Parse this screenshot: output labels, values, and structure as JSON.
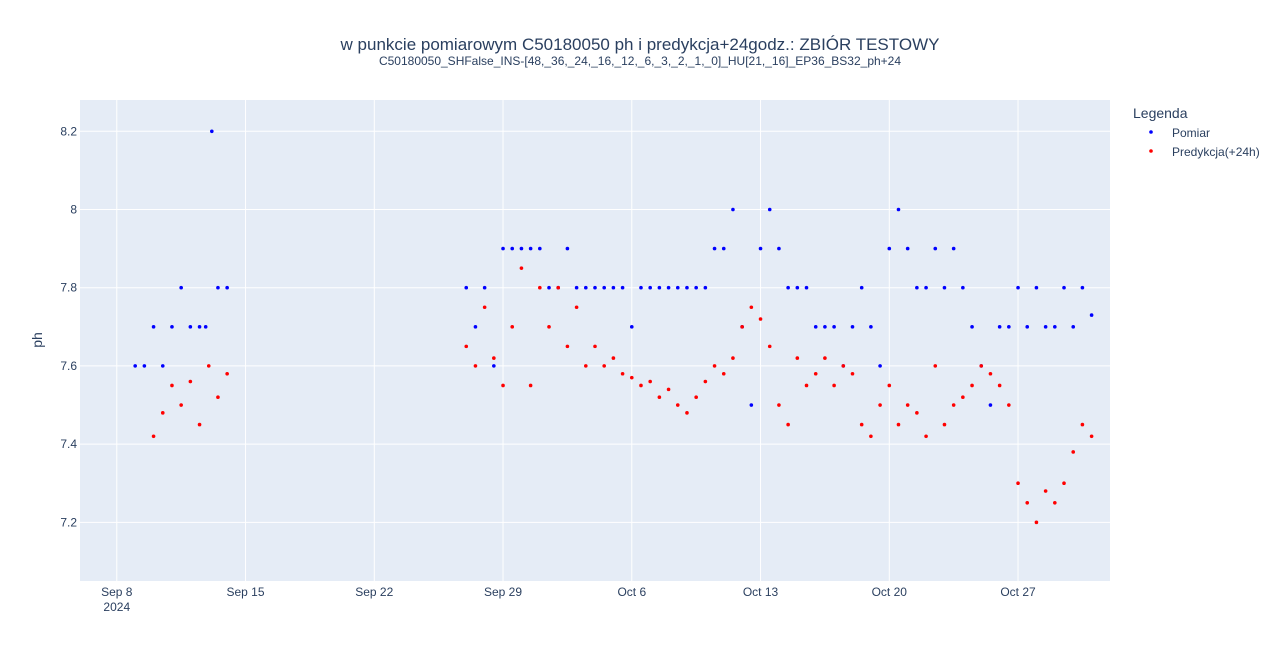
{
  "chart_data": {
    "type": "scatter",
    "title": "w punkcie pomiarowym C50180050 ph i predykcja+24godz.: ZBIÓR TESTOWY",
    "subtitle": "C50180050_SHFalse_INS-[48,_36,_24,_16,_12,_6,_3,_2,_1,_0]_HU[21,_16]_EP36_BS32_ph+24",
    "xlabel": "",
    "ylabel": "ph",
    "x_is_date": true,
    "x_range": [
      "2024-09-06",
      "2024-11-01"
    ],
    "ylim": [
      7.05,
      8.28
    ],
    "x_ticks": [
      {
        "date": "2024-09-08",
        "label": "Sep 8",
        "label2": "2024"
      },
      {
        "date": "2024-09-15",
        "label": "Sep 15"
      },
      {
        "date": "2024-09-22",
        "label": "Sep 22"
      },
      {
        "date": "2024-09-29",
        "label": "Sep 29"
      },
      {
        "date": "2024-10-06",
        "label": "Oct 6"
      },
      {
        "date": "2024-10-13",
        "label": "Oct 13"
      },
      {
        "date": "2024-10-20",
        "label": "Oct 20"
      },
      {
        "date": "2024-10-27",
        "label": "Oct 27"
      }
    ],
    "y_ticks": [
      7.2,
      7.4,
      7.6,
      7.8,
      8.0,
      8.2
    ],
    "y_tick_labels": [
      "7.2",
      "7.4",
      "7.6",
      "7.8",
      "8",
      "8.2"
    ],
    "grid": true,
    "legend": {
      "title": "Legenda",
      "position": "right"
    },
    "series": [
      {
        "name": "Pomiar",
        "color": "#0000ff",
        "x": [
          "2024-09-09 00:00",
          "2024-09-09 12:00",
          "2024-09-10 00:00",
          "2024-09-10 12:00",
          "2024-09-11 00:00",
          "2024-09-11 12:00",
          "2024-09-12 00:00",
          "2024-09-12 12:00",
          "2024-09-12 20:00",
          "2024-09-13 04:00",
          "2024-09-13 12:00",
          "2024-09-14 00:00",
          "2024-09-27 00:00",
          "2024-09-27 12:00",
          "2024-09-28 00:00",
          "2024-09-28 12:00",
          "2024-09-29 00:00",
          "2024-09-29 12:00",
          "2024-09-30 00:00",
          "2024-09-30 12:00",
          "2024-10-01 00:00",
          "2024-10-01 12:00",
          "2024-10-02 00:00",
          "2024-10-02 12:00",
          "2024-10-03 00:00",
          "2024-10-03 12:00",
          "2024-10-04 00:00",
          "2024-10-04 12:00",
          "2024-10-05 00:00",
          "2024-10-05 12:00",
          "2024-10-06 00:00",
          "2024-10-06 12:00",
          "2024-10-07 00:00",
          "2024-10-07 12:00",
          "2024-10-08 00:00",
          "2024-10-08 12:00",
          "2024-10-09 00:00",
          "2024-10-09 12:00",
          "2024-10-10 00:00",
          "2024-10-10 12:00",
          "2024-10-11 00:00",
          "2024-10-11 12:00",
          "2024-10-12 00:00",
          "2024-10-12 12:00",
          "2024-10-13 00:00",
          "2024-10-13 12:00",
          "2024-10-14 00:00",
          "2024-10-14 12:00",
          "2024-10-15 00:00",
          "2024-10-15 12:00",
          "2024-10-16 00:00",
          "2024-10-16 12:00",
          "2024-10-17 00:00",
          "2024-10-17 12:00",
          "2024-10-18 00:00",
          "2024-10-18 12:00",
          "2024-10-19 00:00",
          "2024-10-19 12:00",
          "2024-10-20 00:00",
          "2024-10-20 12:00",
          "2024-10-21 00:00",
          "2024-10-21 12:00",
          "2024-10-22 00:00",
          "2024-10-22 12:00",
          "2024-10-23 00:00",
          "2024-10-23 12:00",
          "2024-10-24 00:00",
          "2024-10-24 12:00",
          "2024-10-25 00:00",
          "2024-10-25 12:00",
          "2024-10-26 00:00",
          "2024-10-26 12:00",
          "2024-10-27 00:00",
          "2024-10-27 12:00",
          "2024-10-28 00:00",
          "2024-10-28 12:00",
          "2024-10-29 00:00",
          "2024-10-29 12:00",
          "2024-10-30 00:00",
          "2024-10-30 12:00",
          "2024-10-31 00:00"
        ],
        "y": [
          7.6,
          7.6,
          7.7,
          7.6,
          7.7,
          7.8,
          7.7,
          7.7,
          7.7,
          8.2,
          7.8,
          7.8,
          7.8,
          7.7,
          7.8,
          7.6,
          7.9,
          7.9,
          7.9,
          7.9,
          7.9,
          7.8,
          7.8,
          7.9,
          7.8,
          7.8,
          7.8,
          7.8,
          7.8,
          7.8,
          7.7,
          7.8,
          7.8,
          7.8,
          7.8,
          7.8,
          7.8,
          7.8,
          7.8,
          7.9,
          7.9,
          8.0,
          7.7,
          7.5,
          7.9,
          8.0,
          7.9,
          7.8,
          7.8,
          7.8,
          7.7,
          7.7,
          7.7,
          7.6,
          7.7,
          7.8,
          7.7,
          7.6,
          7.9,
          8.0,
          7.9,
          7.8,
          7.8,
          7.9,
          7.8,
          7.9,
          7.8,
          7.7,
          7.6,
          7.5,
          7.7,
          7.7,
          7.8,
          7.7,
          7.8,
          7.7,
          7.7,
          7.8,
          7.7,
          7.8,
          7.73
        ]
      },
      {
        "name": "Predykcja(+24h)",
        "color": "#ff0000",
        "x": [
          "2024-09-10 00:00",
          "2024-09-10 12:00",
          "2024-09-11 00:00",
          "2024-09-11 12:00",
          "2024-09-12 00:00",
          "2024-09-12 12:00",
          "2024-09-13 00:00",
          "2024-09-13 12:00",
          "2024-09-14 00:00",
          "2024-09-27 00:00",
          "2024-09-27 12:00",
          "2024-09-28 00:00",
          "2024-09-28 12:00",
          "2024-09-29 00:00",
          "2024-09-29 12:00",
          "2024-09-30 00:00",
          "2024-09-30 12:00",
          "2024-10-01 00:00",
          "2024-10-01 12:00",
          "2024-10-02 00:00",
          "2024-10-02 12:00",
          "2024-10-03 00:00",
          "2024-10-03 12:00",
          "2024-10-04 00:00",
          "2024-10-04 12:00",
          "2024-10-05 00:00",
          "2024-10-05 12:00",
          "2024-10-06 00:00",
          "2024-10-06 12:00",
          "2024-10-07 00:00",
          "2024-10-07 12:00",
          "2024-10-08 00:00",
          "2024-10-08 12:00",
          "2024-10-09 00:00",
          "2024-10-09 12:00",
          "2024-10-10 00:00",
          "2024-10-10 12:00",
          "2024-10-11 00:00",
          "2024-10-11 12:00",
          "2024-10-12 00:00",
          "2024-10-12 12:00",
          "2024-10-13 00:00",
          "2024-10-13 12:00",
          "2024-10-14 00:00",
          "2024-10-14 12:00",
          "2024-10-15 00:00",
          "2024-10-15 12:00",
          "2024-10-16 00:00",
          "2024-10-16 12:00",
          "2024-10-17 00:00",
          "2024-10-17 12:00",
          "2024-10-18 00:00",
          "2024-10-18 12:00",
          "2024-10-19 00:00",
          "2024-10-19 12:00",
          "2024-10-20 00:00",
          "2024-10-20 12:00",
          "2024-10-21 00:00",
          "2024-10-21 12:00",
          "2024-10-22 00:00",
          "2024-10-22 12:00",
          "2024-10-23 00:00",
          "2024-10-23 12:00",
          "2024-10-24 00:00",
          "2024-10-24 12:00",
          "2024-10-25 00:00",
          "2024-10-25 12:00",
          "2024-10-26 00:00",
          "2024-10-26 12:00",
          "2024-10-27 00:00",
          "2024-10-27 12:00",
          "2024-10-28 00:00",
          "2024-10-28 12:00",
          "2024-10-29 00:00",
          "2024-10-29 12:00",
          "2024-10-30 00:00",
          "2024-10-30 12:00",
          "2024-10-31 00:00"
        ],
        "y": [
          7.42,
          7.48,
          7.55,
          7.5,
          7.56,
          7.45,
          7.6,
          7.52,
          7.58,
          7.65,
          7.6,
          7.75,
          7.62,
          7.55,
          7.7,
          7.85,
          7.55,
          7.8,
          7.7,
          7.8,
          7.65,
          7.75,
          7.6,
          7.65,
          7.6,
          7.62,
          7.58,
          7.57,
          7.55,
          7.56,
          7.52,
          7.54,
          7.5,
          7.48,
          7.52,
          7.56,
          7.6,
          7.58,
          7.62,
          7.7,
          7.75,
          7.72,
          7.65,
          7.5,
          7.45,
          7.62,
          7.55,
          7.58,
          7.62,
          7.55,
          7.6,
          7.58,
          7.45,
          7.42,
          7.5,
          7.55,
          7.45,
          7.5,
          7.48,
          7.42,
          7.6,
          7.45,
          7.5,
          7.52,
          7.55,
          7.6,
          7.58,
          7.55,
          7.5,
          7.3,
          7.25,
          7.2,
          7.28,
          7.25,
          7.3,
          7.38,
          7.45,
          7.42
        ]
      }
    ]
  }
}
